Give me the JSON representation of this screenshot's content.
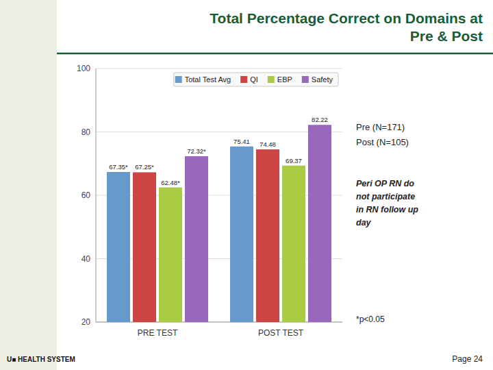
{
  "chart_data": {
    "type": "bar",
    "title": "Total Percentage Correct on Domains at\nPre & Post",
    "categories": [
      "PRE TEST",
      "POST TEST"
    ],
    "series": [
      {
        "name": "Total Test Avg",
        "color": "#6699cc",
        "values": [
          67.35,
          75.41
        ],
        "value_labels": [
          "67.35*",
          "75.41"
        ]
      },
      {
        "name": "QI",
        "color": "#cc4444",
        "values": [
          67.25,
          74.48
        ],
        "value_labels": [
          "67.25*",
          "74.48"
        ]
      },
      {
        "name": "EBP",
        "color": "#aacc44",
        "values": [
          62.48,
          69.37
        ],
        "value_labels": [
          "62.48*",
          "69.37"
        ]
      },
      {
        "name": "Safety",
        "color": "#9966bb",
        "values": [
          72.32,
          82.22
        ],
        "value_labels": [
          "72.32*",
          "82.22"
        ]
      }
    ],
    "ylim": [
      20,
      100
    ],
    "yticks": [
      20,
      40,
      60,
      80,
      100
    ],
    "grid": true,
    "legend": "upper right",
    "data_labels": true,
    "annotations": [
      "*p<0.05",
      "Pre (N=171)",
      "Post (N=105)",
      "Peri OP RN do\nnot participate\nin RN follow up\nday",
      "Page 24",
      "U■ HEALTH SYSTEM"
    ]
  }
}
